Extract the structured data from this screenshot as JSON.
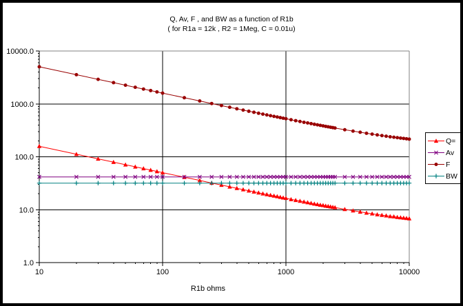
{
  "window": {
    "background": "#FFFFFF",
    "frame_color": "#000000",
    "plot_border_gray": "#808080",
    "gridline_color": "#000000"
  },
  "chart_data": {
    "type": "line",
    "title": "Q, Av, F , and BW as a function of R1b",
    "subtitle": "( for R1a = 12k , R2 = 1Meg, C = 0.01u)",
    "xlabel": "R1b ohms",
    "ylabel": "",
    "x_scale": "log",
    "y_scale": "log",
    "xlim": [
      10,
      10000
    ],
    "ylim": [
      1,
      10000
    ],
    "grid": "major",
    "legend_position": "right",
    "x_tick_values": [
      10,
      100,
      1000,
      10000
    ],
    "x_tick_labels": [
      "10",
      "100",
      "1000",
      "10000"
    ],
    "y_tick_values": [
      10000,
      1000,
      100,
      10,
      1
    ],
    "y_tick_labels": [
      "10000.0",
      "1000.0",
      "100.0",
      "10.0",
      "1.0"
    ],
    "x": [
      10,
      20,
      30,
      40,
      50,
      60,
      70,
      80,
      90,
      100,
      150,
      200,
      250,
      300,
      350,
      400,
      450,
      500,
      550,
      600,
      650,
      700,
      750,
      800,
      850,
      900,
      950,
      1000,
      1100,
      1200,
      1300,
      1400,
      1500,
      1600,
      1700,
      1800,
      1900,
      2000,
      2100,
      2200,
      2300,
      2400,
      2500,
      3000,
      3500,
      4000,
      4500,
      5000,
      5500,
      6000,
      6500,
      7000,
      7500,
      8000,
      8500,
      9000,
      9500,
      10000
    ],
    "series": [
      {
        "name": "Q=",
        "color": "#FF0000",
        "marker": "triangle",
        "values": [
          158.2,
          111.9,
          91.4,
          79.2,
          70.8,
          64.7,
          59.9,
          56.1,
          52.9,
          50.2,
          41.1,
          35.7,
          31.9,
          29.2,
          27.1,
          25.4,
          24.0,
          22.8,
          21.8,
          20.9,
          20.1,
          19.4,
          18.8,
          18.3,
          17.8,
          17.3,
          16.8,
          16.5,
          15.7,
          15.1,
          14.6,
          14.1,
          13.7,
          13.3,
          12.9,
          12.6,
          12.3,
          12.1,
          11.8,
          11.6,
          11.4,
          11.2,
          11.0,
          10.2,
          9.6,
          9.1,
          8.7,
          8.4,
          8.1,
          7.9,
          7.7,
          7.5,
          7.4,
          7.2,
          7.1,
          7.0,
          6.9,
          6.8
        ]
      },
      {
        "name": "Av",
        "color": "#800080",
        "marker": "x",
        "constant_value": 41.7
      },
      {
        "name": "F",
        "color": "#990000",
        "marker": "circle",
        "values": [
          5035,
          3562,
          2910,
          2521,
          2255,
          2060,
          1908,
          1785,
          1684,
          1598,
          1308,
          1135,
          1017,
          930,
          863,
          809,
          764,
          726,
          694,
          666,
          641,
          619,
          599,
          581,
          565,
          550,
          536,
          524,
          501,
          482,
          465,
          449,
          436,
          424,
          412,
          402,
          393,
          384,
          376,
          369,
          362,
          356,
          350,
          325,
          306,
          291,
          278,
          268,
          259,
          252,
          245,
          239,
          234,
          230,
          226,
          222,
          219,
          216
        ]
      },
      {
        "name": "BW",
        "color": "#008080",
        "marker": "plus",
        "constant_value": 31.8
      }
    ]
  }
}
